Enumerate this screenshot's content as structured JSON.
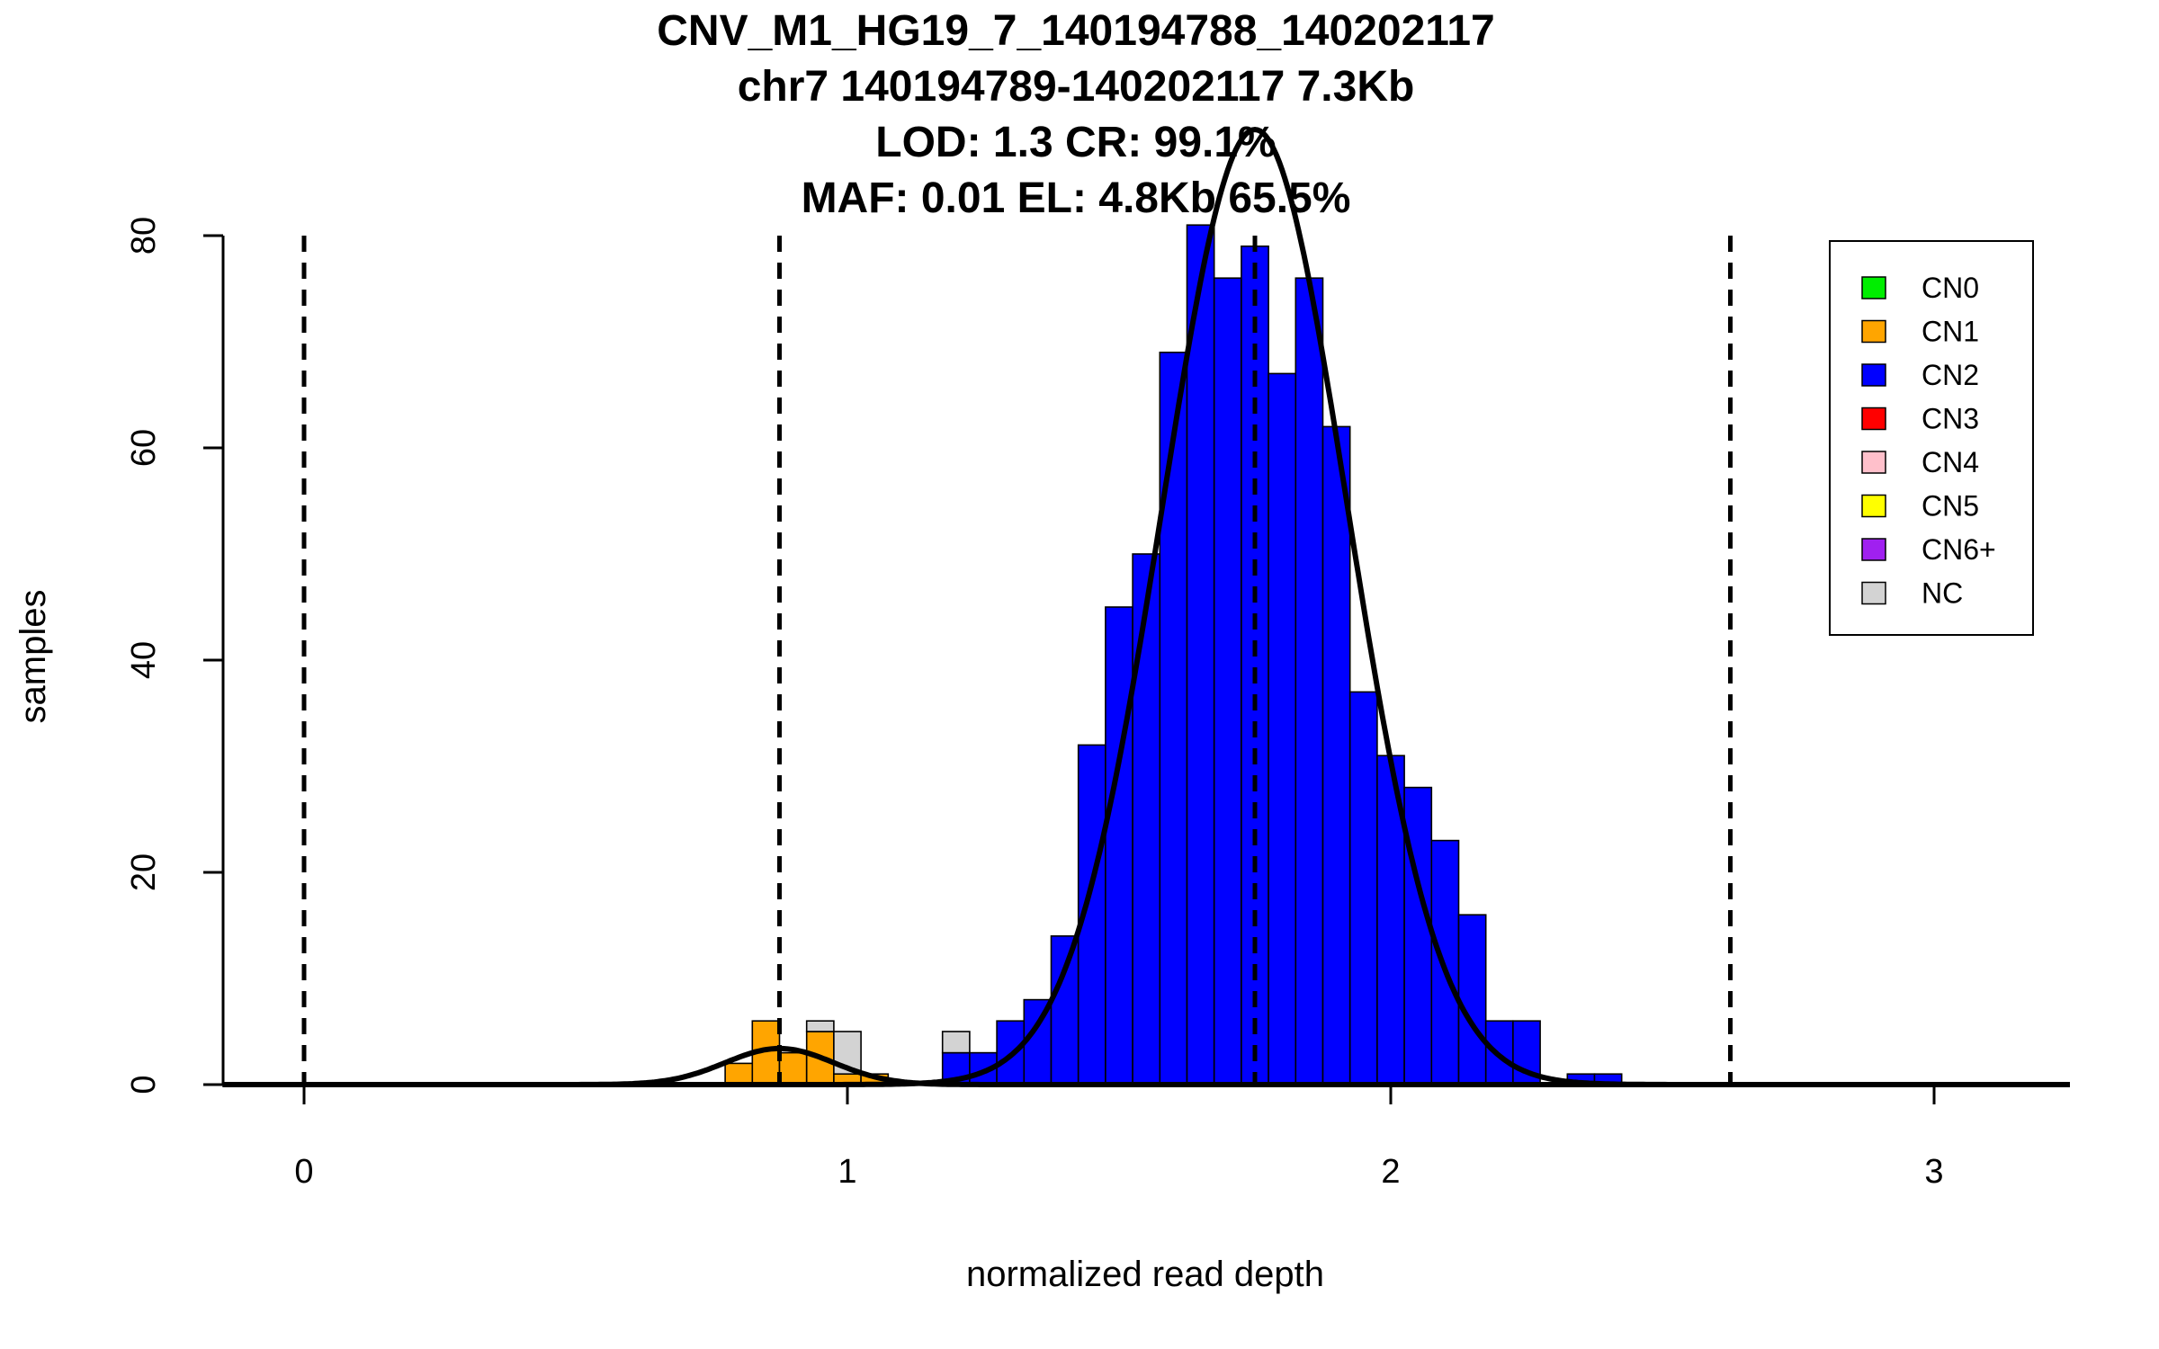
{
  "chart_data": {
    "type": "bar",
    "title_lines": [
      "CNV_M1_HG19_7_140194788_140202117",
      "chr7 140194789-140202117 7.3Kb",
      "LOD: 1.3 CR: 99.1%",
      "MAF: 0.01 EL: 4.8Kb 65.5%"
    ],
    "xlabel": "normalized read depth",
    "ylabel": "samples",
    "xlim": [
      -0.15,
      3.25
    ],
    "ylim": [
      0,
      80
    ],
    "xticks": [
      "0",
      "1",
      "2",
      "3"
    ],
    "yticks": [
      "0",
      "20",
      "40",
      "60",
      "80"
    ],
    "bin_width": 0.05,
    "bins": [
      {
        "x0": 0.775,
        "cn1": 2,
        "cn2": 0,
        "nc": 0
      },
      {
        "x0": 0.825,
        "cn1": 6,
        "cn2": 0,
        "nc": 0
      },
      {
        "x0": 0.875,
        "cn1": 3,
        "cn2": 0,
        "nc": 0
      },
      {
        "x0": 0.925,
        "cn1": 5,
        "cn2": 0,
        "nc": 1
      },
      {
        "x0": 0.975,
        "cn1": 1,
        "cn2": 0,
        "nc": 4
      },
      {
        "x0": 1.025,
        "cn1": 1,
        "cn2": 0,
        "nc": 0
      },
      {
        "x0": 1.175,
        "cn1": 0,
        "cn2": 3,
        "nc": 2
      },
      {
        "x0": 1.225,
        "cn1": 0,
        "cn2": 3,
        "nc": 0
      },
      {
        "x0": 1.275,
        "cn1": 0,
        "cn2": 6,
        "nc": 0
      },
      {
        "x0": 1.325,
        "cn1": 0,
        "cn2": 8,
        "nc": 0
      },
      {
        "x0": 1.375,
        "cn1": 0,
        "cn2": 14,
        "nc": 0
      },
      {
        "x0": 1.425,
        "cn1": 0,
        "cn2": 32,
        "nc": 0
      },
      {
        "x0": 1.475,
        "cn1": 0,
        "cn2": 45,
        "nc": 0
      },
      {
        "x0": 1.525,
        "cn1": 0,
        "cn2": 50,
        "nc": 0
      },
      {
        "x0": 1.575,
        "cn1": 0,
        "cn2": 69,
        "nc": 0
      },
      {
        "x0": 1.625,
        "cn1": 0,
        "cn2": 81,
        "nc": 0
      },
      {
        "x0": 1.675,
        "cn1": 0,
        "cn2": 76,
        "nc": 0
      },
      {
        "x0": 1.725,
        "cn1": 0,
        "cn2": 79,
        "nc": 0
      },
      {
        "x0": 1.775,
        "cn1": 0,
        "cn2": 67,
        "nc": 0
      },
      {
        "x0": 1.825,
        "cn1": 0,
        "cn2": 76,
        "nc": 0
      },
      {
        "x0": 1.875,
        "cn1": 0,
        "cn2": 62,
        "nc": 0
      },
      {
        "x0": 1.925,
        "cn1": 0,
        "cn2": 37,
        "nc": 0
      },
      {
        "x0": 1.975,
        "cn1": 0,
        "cn2": 31,
        "nc": 0
      },
      {
        "x0": 2.025,
        "cn1": 0,
        "cn2": 28,
        "nc": 0
      },
      {
        "x0": 2.075,
        "cn1": 0,
        "cn2": 23,
        "nc": 0
      },
      {
        "x0": 2.125,
        "cn1": 0,
        "cn2": 16,
        "nc": 0
      },
      {
        "x0": 2.175,
        "cn1": 0,
        "cn2": 6,
        "nc": 0
      },
      {
        "x0": 2.225,
        "cn1": 0,
        "cn2": 6,
        "nc": 0
      },
      {
        "x0": 2.325,
        "cn1": 0,
        "cn2": 1,
        "nc": 0
      },
      {
        "x0": 2.375,
        "cn1": 0,
        "cn2": 1,
        "nc": 0
      }
    ],
    "dashed_lines_x": [
      0,
      0.875,
      1.75,
      2.625
    ],
    "density_curves": [
      {
        "component": "CN1",
        "mean": 0.875,
        "sd": 0.1,
        "peak": 3.4
      },
      {
        "component": "CN2",
        "mean": 1.75,
        "sd": 0.17,
        "peak": 90
      }
    ],
    "legend": {
      "position": "top-right",
      "items": [
        {
          "label": "CN0",
          "color": "#00ee00"
        },
        {
          "label": "CN1",
          "color": "#ffa500"
        },
        {
          "label": "CN2",
          "color": "#0000ff"
        },
        {
          "label": "CN3",
          "color": "#ff0000"
        },
        {
          "label": "CN4",
          "color": "#ffc0cb"
        },
        {
          "label": "CN5",
          "color": "#ffff00"
        },
        {
          "label": "CN6+",
          "color": "#a020f0"
        },
        {
          "label": "NC",
          "color": "#d3d3d3"
        }
      ]
    },
    "colors": {
      "cn1": "#ffa500",
      "cn2": "#0000ff",
      "nc": "#d3d3d3"
    },
    "grid": false
  }
}
